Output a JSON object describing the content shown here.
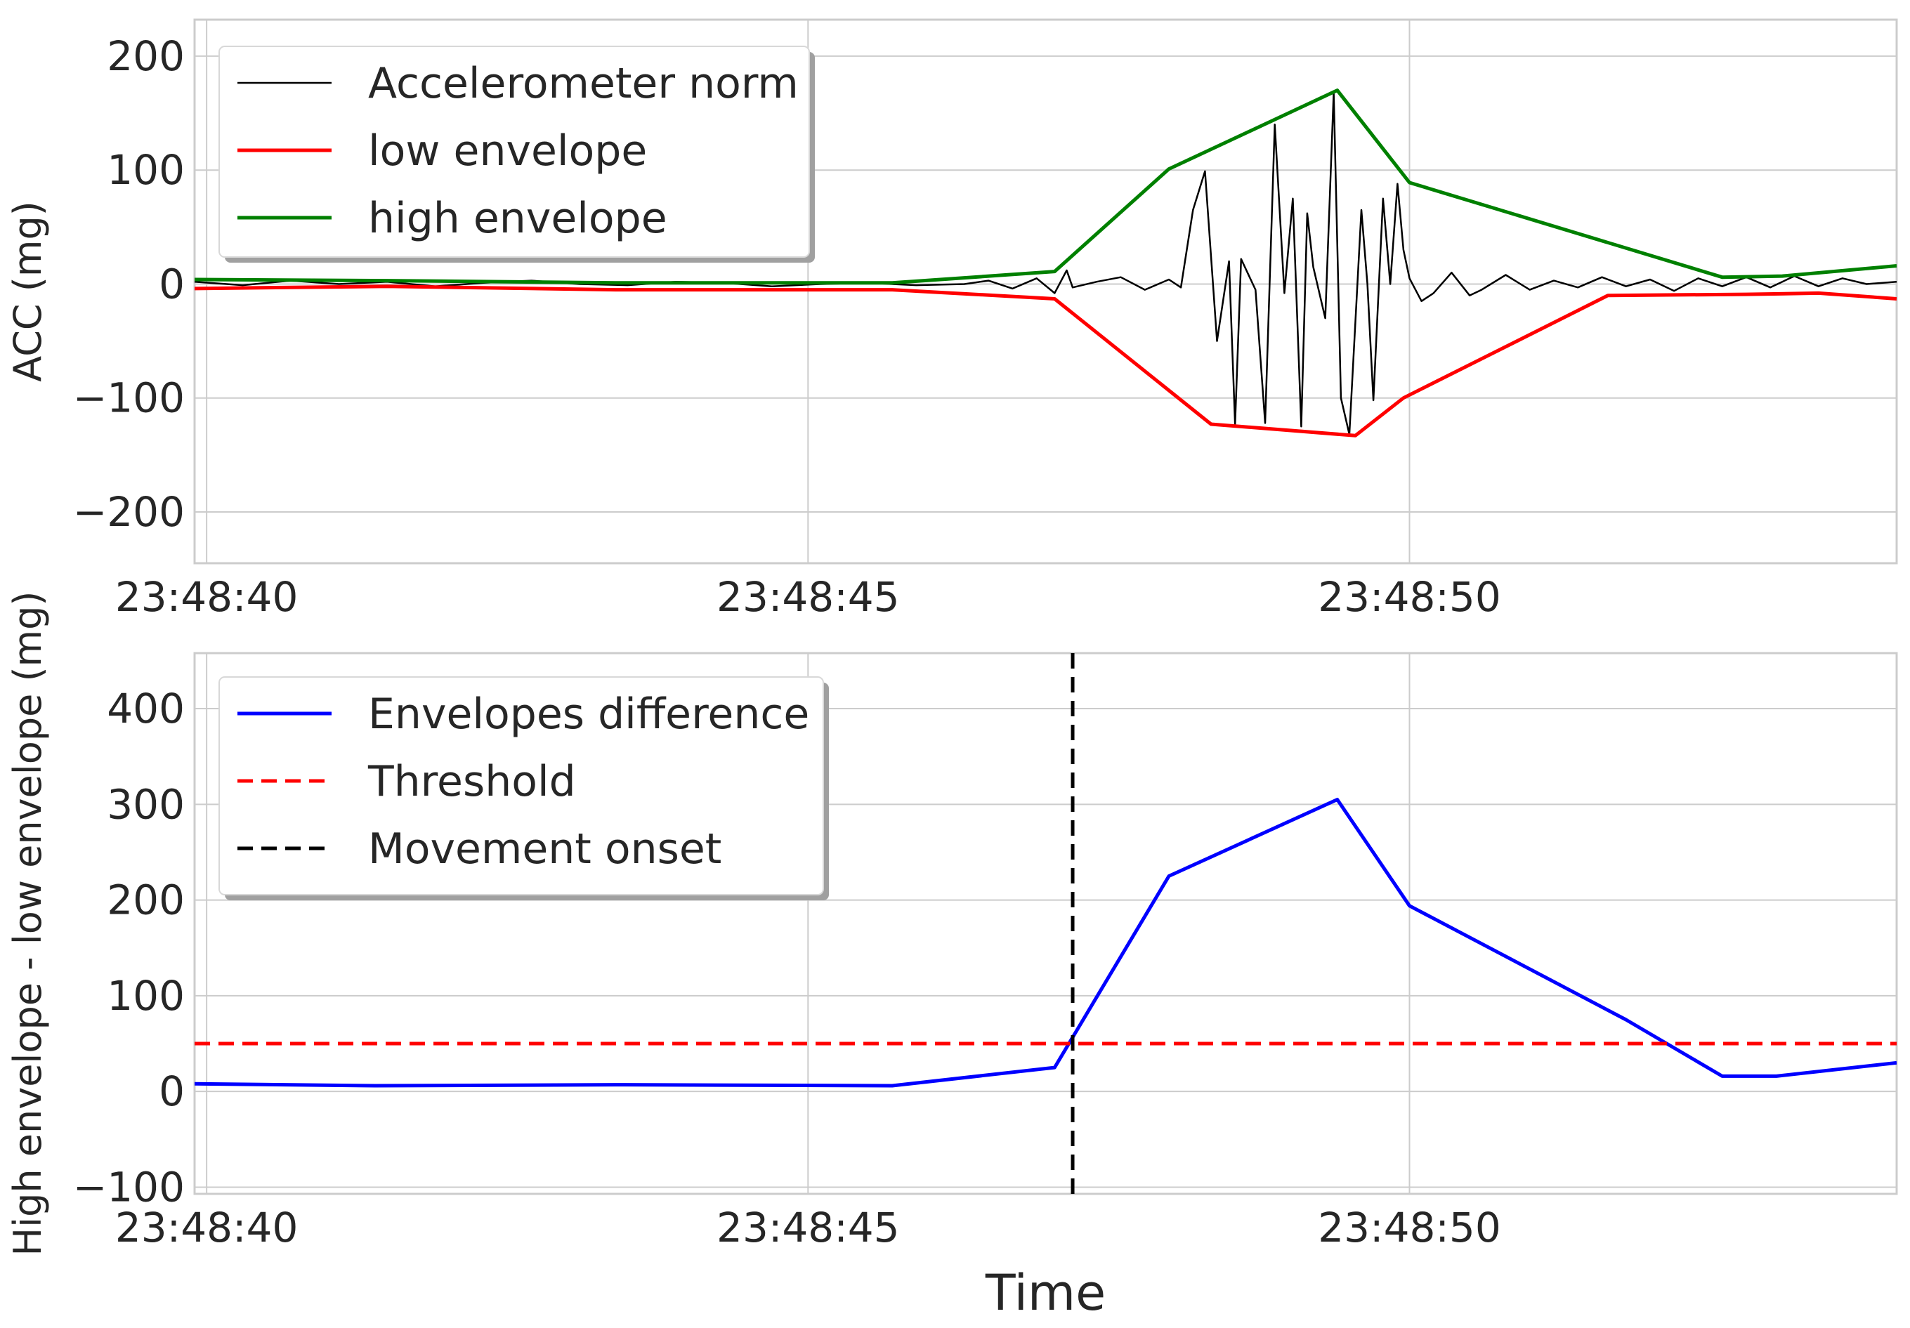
{
  "chart_data": [
    {
      "type": "line",
      "ylabel": "ACC (mg)",
      "xlabel": "",
      "x_unit": "seconds after 23:48:40",
      "xlim": [
        -0.1,
        14.05
      ],
      "ylim": [
        -245,
        232
      ],
      "xticks": [
        0,
        5,
        10
      ],
      "xtick_labels": [
        "23:48:40",
        "23:48:45",
        "23:48:50"
      ],
      "yticks": [
        200,
        100,
        0,
        -100,
        -200
      ],
      "ytick_labels": [
        "200",
        "100",
        "0",
        "−100",
        "−200"
      ],
      "grid": true,
      "legend_position": "top-left",
      "series": [
        {
          "name": "Accelerometer norm",
          "color": "#000000",
          "x": [
            -0.1,
            0.3,
            0.7,
            1.1,
            1.5,
            1.9,
            2.3,
            2.7,
            3.1,
            3.5,
            3.9,
            4.3,
            4.7,
            5.1,
            5.5,
            5.9,
            6.3,
            6.5,
            6.7,
            6.9,
            7.05,
            7.15,
            7.2,
            7.4,
            7.6,
            7.8,
            8.0,
            8.1,
            8.2,
            8.3,
            8.4,
            8.5,
            8.55,
            8.6,
            8.72,
            8.8,
            8.88,
            8.96,
            9.03,
            9.1,
            9.15,
            9.2,
            9.3,
            9.37,
            9.43,
            9.5,
            9.6,
            9.65,
            9.7,
            9.78,
            9.84,
            9.9,
            9.95,
            10.0,
            10.1,
            10.2,
            10.35,
            10.5,
            10.6,
            10.8,
            11.0,
            11.2,
            11.4,
            11.6,
            11.8,
            12.0,
            12.2,
            12.4,
            12.6,
            12.8,
            13.0,
            13.2,
            13.4,
            13.6,
            13.8,
            14.05
          ],
          "y": [
            2,
            -1,
            3,
            0,
            2,
            -2,
            1,
            3,
            0,
            -1,
            2,
            1,
            -2,
            0,
            1,
            -1,
            0,
            3,
            -4,
            5,
            -8,
            12,
            -3,
            2,
            6,
            -5,
            4,
            -3,
            65,
            99,
            -50,
            20,
            -123,
            22,
            -5,
            -122,
            140,
            -8,
            75,
            -125,
            62,
            15,
            -30,
            168,
            -100,
            -132,
            65,
            0,
            -102,
            75,
            0,
            88,
            30,
            5,
            -15,
            -8,
            10,
            -10,
            -5,
            8,
            -5,
            3,
            -3,
            6,
            -2,
            4,
            -6,
            5,
            -2,
            6,
            -3,
            7,
            -2,
            5,
            0,
            2
          ]
        },
        {
          "name": "low envelope",
          "color": "#ff0000",
          "x": [
            -0.1,
            1.5,
            3.4,
            5.7,
            7.05,
            8.35,
            9.55,
            9.95,
            11.65,
            12.8,
            13.4,
            14.05
          ],
          "y": [
            -4,
            -2,
            -5,
            -5,
            -13,
            -123,
            -133,
            -100,
            -10,
            -9,
            -8,
            -13
          ]
        },
        {
          "name": "high envelope",
          "color": "#008000",
          "x": [
            -0.1,
            1.5,
            3.4,
            5.7,
            7.05,
            8.0,
            9.4,
            10.0,
            12.6,
            13.1,
            14.05
          ],
          "y": [
            4,
            3,
            1,
            1,
            11,
            101,
            170,
            89,
            6,
            7,
            16
          ]
        }
      ]
    },
    {
      "type": "line",
      "ylabel": "High envelope - low envelope (mg)",
      "xlabel": "Time",
      "x_unit": "seconds after 23:48:40",
      "xlim": [
        -0.1,
        14.05
      ],
      "ylim": [
        -107,
        458
      ],
      "xticks": [
        0,
        5,
        10
      ],
      "xtick_labels": [
        "23:48:40",
        "23:48:45",
        "23:48:50"
      ],
      "yticks": [
        400,
        300,
        200,
        100,
        0,
        -100
      ],
      "ytick_labels": [
        "400",
        "300",
        "200",
        "100",
        "0",
        "−100"
      ],
      "grid": true,
      "legend_position": "top-left",
      "series": [
        {
          "name": "Envelopes difference",
          "color": "#0000ff",
          "style": "solid",
          "x": [
            -0.1,
            1.4,
            3.4,
            5.7,
            7.05,
            8.0,
            9.4,
            10.0,
            11.8,
            12.6,
            13.05,
            14.05
          ],
          "y": [
            8,
            6,
            7,
            6,
            25,
            225,
            305,
            194,
            75,
            16,
            16,
            30
          ]
        },
        {
          "name": "Threshold",
          "color": "#ff0000",
          "style": "dashed",
          "orientation": "horizontal",
          "value": 50
        },
        {
          "name": "Movement onset",
          "color": "#000000",
          "style": "dashed",
          "orientation": "vertical",
          "value": 7.2
        }
      ]
    }
  ]
}
